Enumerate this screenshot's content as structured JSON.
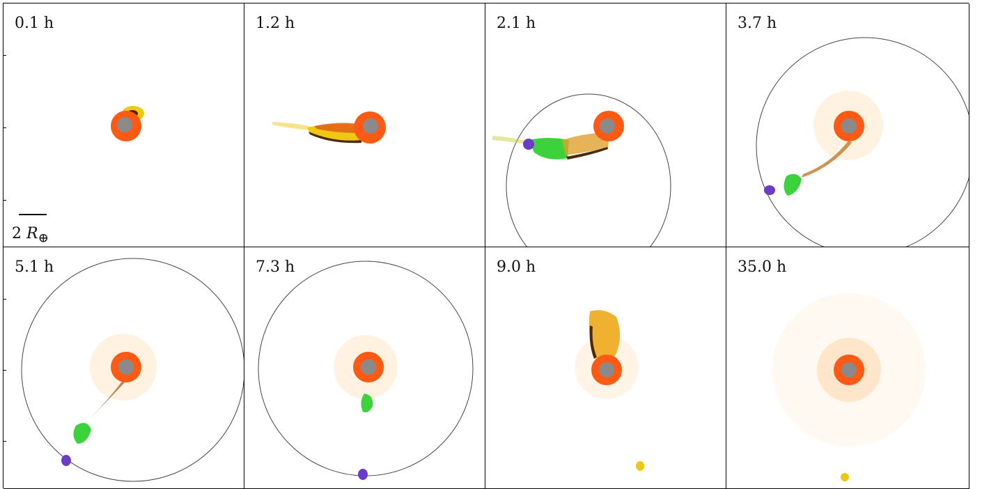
{
  "figure": {
    "panels": [
      {
        "label": "0.1 h"
      },
      {
        "label": "1.2 h"
      },
      {
        "label": "2.1 h"
      },
      {
        "label": "3.7 h"
      },
      {
        "label": "5.1 h"
      },
      {
        "label": "7.3 h"
      },
      {
        "label": "9.0 h"
      },
      {
        "label": "35.0 h"
      }
    ],
    "scale": {
      "number": "2",
      "symbol": "R",
      "subscript": "⊕"
    }
  },
  "colors": {
    "core": "#8a8a8a",
    "mantle": "#ff5a14",
    "halo": "#ffa03c",
    "impactor": "#f0c814",
    "impactor_dark": "#5a3a10",
    "green_clump": "#3cd23c",
    "purple_clump": "#6a3cc8",
    "orbit": "#444444"
  }
}
